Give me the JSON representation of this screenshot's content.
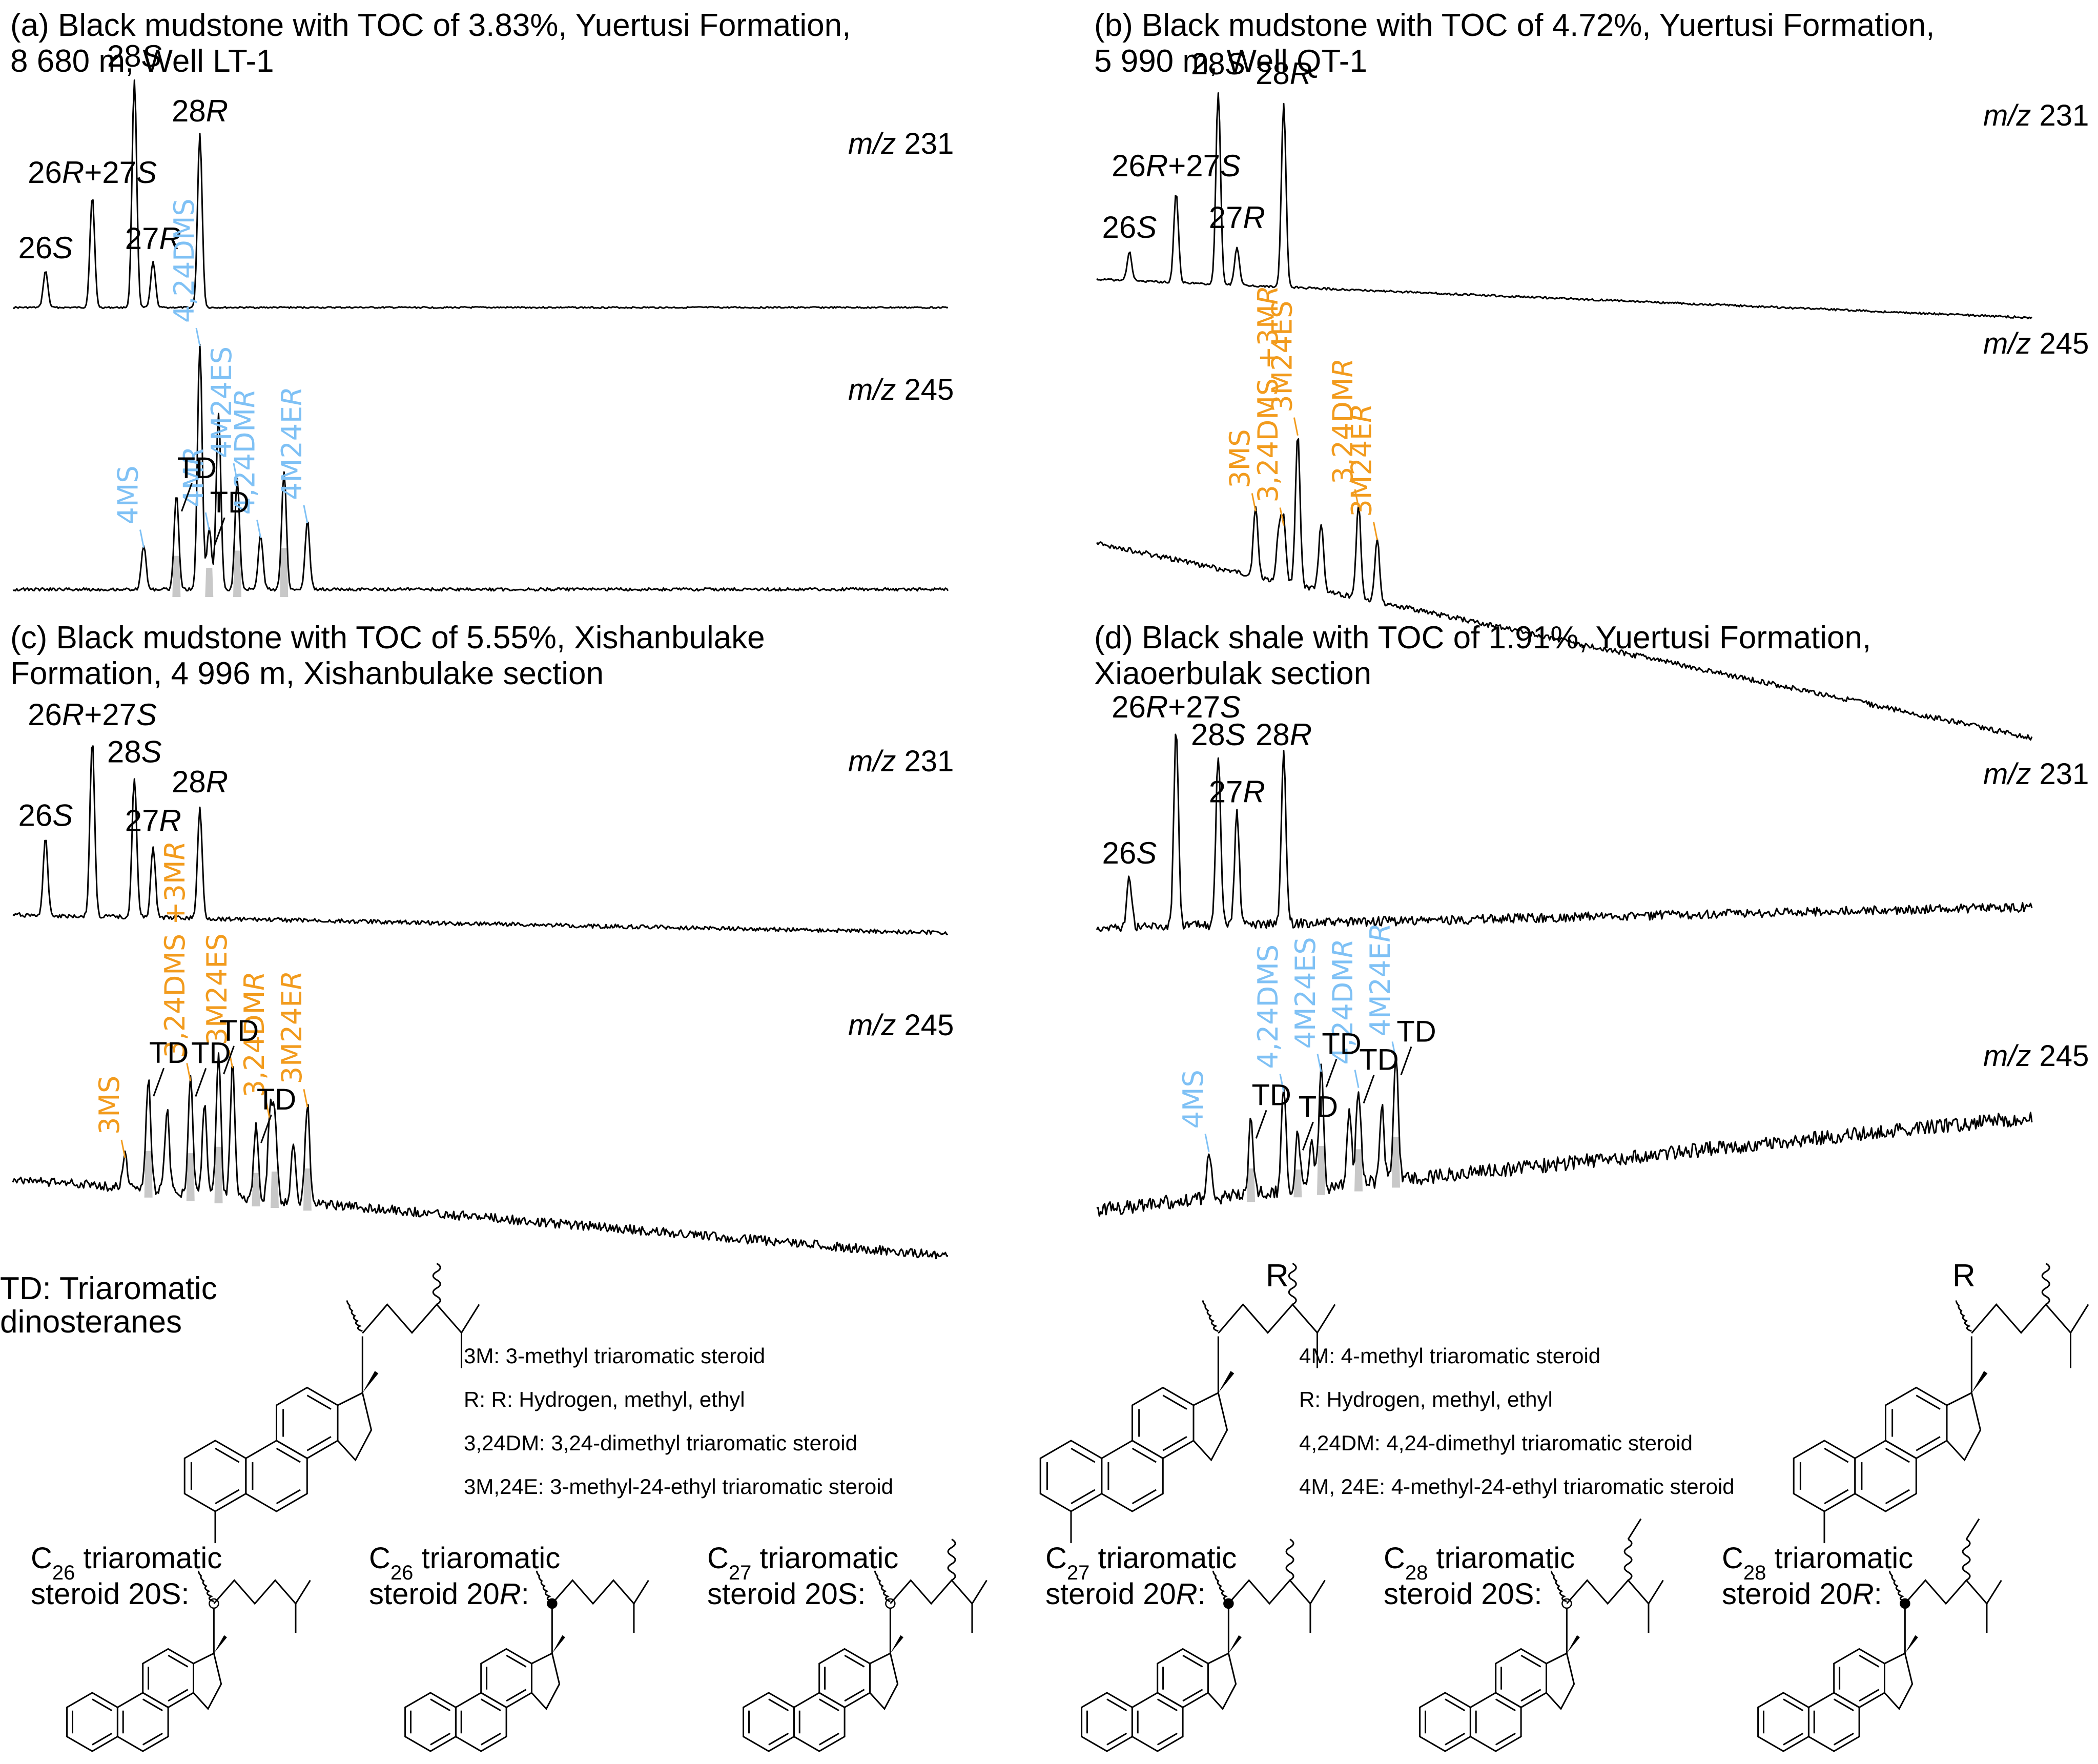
{
  "figure": {
    "colors": {
      "line": "#000000",
      "blue_label": "#7fc1f5",
      "orange_label": "#f29b1d",
      "shading": "#c8c8c8"
    },
    "panels": [
      {
        "id": "a",
        "title_line1": "(a) Black mudstone with TOC of 3.83%, Yuertusi Formation,",
        "title_line2": "8 680 m, Well LT-1",
        "m231": {
          "label_m": "m/z",
          "label_n": "231",
          "peaks": [
            {
              "name": "26S",
              "num": "26",
              "iso": "S",
              "rt": 0.035,
              "h": 0.16
            },
            {
              "name": "26R+27S",
              "num": "26",
              "iso": "R+27S",
              "rt": 0.085,
              "h": 0.49
            },
            {
              "name": "28S",
              "num": "28",
              "iso": "S",
              "rt": 0.13,
              "h": 1.0
            },
            {
              "name": "27R",
              "num": "27",
              "iso": "R",
              "rt": 0.15,
              "h": 0.2
            },
            {
              "name": "28R",
              "num": "28",
              "iso": "R",
              "rt": 0.2,
              "h": 0.76
            }
          ]
        },
        "m245": {
          "label_m": "m/z",
          "label_n": "245",
          "label_color": "blue",
          "labels": [
            "4MS",
            "4,24DMS",
            "4MR",
            "4M24ES",
            "4,24DMR",
            "4M24ER"
          ],
          "td_labels": [
            "TD",
            "TD"
          ],
          "peaks": [
            {
              "rt": 0.14,
              "h": 0.18
            },
            {
              "rt": 0.175,
              "h": 0.39
            },
            {
              "rt": 0.2,
              "h": 1.0
            },
            {
              "rt": 0.21,
              "h": 0.25
            },
            {
              "rt": 0.22,
              "h": 0.72
            },
            {
              "rt": 0.24,
              "h": 0.45
            },
            {
              "rt": 0.265,
              "h": 0.22
            },
            {
              "rt": 0.29,
              "h": 0.48
            },
            {
              "rt": 0.315,
              "h": 0.28
            }
          ]
        }
      },
      {
        "id": "b",
        "title_line1": "(b) Black mudstone with TOC of 4.72%, Yuertusi Formation,",
        "title_line2": "5 990 m, Well QT-1",
        "m231": {
          "label_m": "m/z",
          "label_n": "231",
          "peaks": [
            {
              "name": "26S",
              "num": "26",
              "iso": "S",
              "rt": 0.035,
              "h": 0.15
            },
            {
              "name": "26R+27S",
              "num": "26",
              "iso": "R+27S",
              "rt": 0.085,
              "h": 0.47
            },
            {
              "name": "28S",
              "num": "28",
              "iso": "S",
              "rt": 0.13,
              "h": 1.0
            },
            {
              "name": "27R",
              "num": "27",
              "iso": "R",
              "rt": 0.15,
              "h": 0.2
            },
            {
              "name": "28R",
              "num": "28",
              "iso": "R",
              "rt": 0.2,
              "h": 0.95
            }
          ]
        },
        "m245": {
          "label_m": "m/z",
          "label_n": "245",
          "label_color": "orange",
          "labels": [
            "3MS",
            "3,24DMS +3MR",
            "3M24ES",
            "3,24DMR",
            "3M24ER"
          ],
          "td_labels": [],
          "peaks": [
            {
              "rt": 0.17,
              "h": 0.4
            },
            {
              "rt": 0.195,
              "h": 0.3
            },
            {
              "rt": 0.2,
              "h": 0.35
            },
            {
              "rt": 0.215,
              "h": 0.9
            },
            {
              "rt": 0.24,
              "h": 0.4
            },
            {
              "rt": 0.28,
              "h": 0.55
            },
            {
              "rt": 0.3,
              "h": 0.38
            }
          ]
        }
      },
      {
        "id": "c",
        "title_line1": "(c) Black mudstone with TOC of 5.55%, Xishanbulake",
        "title_line2": "Formation, 4 996 m, Xishanbulake section",
        "m231": {
          "label_m": "m/z",
          "label_n": "231",
          "peaks": [
            {
              "name": "26S",
              "num": "26",
              "iso": "S",
              "rt": 0.035,
              "h": 0.43
            },
            {
              "name": "26R+27S",
              "num": "26",
              "iso": "R+27S",
              "rt": 0.085,
              "h": 1.0
            },
            {
              "name": "28S",
              "num": "28",
              "iso": "S",
              "rt": 0.13,
              "h": 0.79
            },
            {
              "name": "27R",
              "num": "27",
              "iso": "R",
              "rt": 0.15,
              "h": 0.4
            },
            {
              "name": "28R",
              "num": "28",
              "iso": "R",
              "rt": 0.2,
              "h": 0.62
            }
          ]
        },
        "m245": {
          "label_m": "m/z",
          "label_n": "245",
          "label_color": "orange",
          "labels": [
            "3MS",
            "3,24DMS +3MR",
            "3M24ES",
            "3,24DMR",
            "3M24ER"
          ],
          "td_labels": [
            "TD",
            "TD",
            "TD",
            "TD"
          ],
          "peaks": [
            {
              "rt": 0.12,
              "h": 0.2
            },
            {
              "rt": 0.145,
              "h": 0.68
            },
            {
              "rt": 0.165,
              "h": 0.5
            },
            {
              "rt": 0.19,
              "h": 0.7
            },
            {
              "rt": 0.205,
              "h": 0.55
            },
            {
              "rt": 0.22,
              "h": 0.85
            },
            {
              "rt": 0.235,
              "h": 0.8
            },
            {
              "rt": 0.26,
              "h": 0.45
            },
            {
              "rt": 0.275,
              "h": 0.5
            },
            {
              "rt": 0.28,
              "h": 0.5
            },
            {
              "rt": 0.3,
              "h": 0.33
            },
            {
              "rt": 0.315,
              "h": 0.6
            }
          ]
        }
      },
      {
        "id": "d",
        "title_line1": "(d) Black shale with TOC of 1.91%, Yuertusi Formation,",
        "title_line2": "Xiaoerbulak section",
        "m231": {
          "label_m": "m/z",
          "label_n": "231",
          "peaks": [
            {
              "name": "26S",
              "num": "26",
              "iso": "S",
              "rt": 0.035,
              "h": 0.26
            },
            {
              "name": "26R+27S",
              "num": "26",
              "iso": "R+27S",
              "rt": 0.085,
              "h": 1.0
            },
            {
              "name": "28S",
              "num": "28",
              "iso": "S",
              "rt": 0.13,
              "h": 0.86
            },
            {
              "name": "27R",
              "num": "27",
              "iso": "R",
              "rt": 0.15,
              "h": 0.57
            },
            {
              "name": "28R",
              "num": "28",
              "iso": "R",
              "rt": 0.2,
              "h": 0.86
            }
          ]
        },
        "m245": {
          "label_m": "m/z",
          "label_n": "245",
          "label_color": "blue",
          "labels": [
            "4MS",
            "4,24DMS",
            "4M24ES",
            "4,24DMR",
            "4M24ER"
          ],
          "td_labels": [
            "TD",
            "TD",
            "TD",
            "TD",
            "TD"
          ],
          "peaks": [
            {
              "rt": 0.12,
              "h": 0.3
            },
            {
              "rt": 0.165,
              "h": 0.45
            },
            {
              "rt": 0.2,
              "h": 0.62
            },
            {
              "rt": 0.215,
              "h": 0.35
            },
            {
              "rt": 0.23,
              "h": 0.3
            },
            {
              "rt": 0.24,
              "h": 0.72
            },
            {
              "rt": 0.27,
              "h": 0.45
            },
            {
              "rt": 0.28,
              "h": 0.6
            },
            {
              "rt": 0.305,
              "h": 0.45
            },
            {
              "rt": 0.32,
              "h": 0.75
            }
          ]
        }
      }
    ],
    "legend": {
      "td": [
        "TD: Triaromatic",
        "dinosteranes"
      ],
      "left_items": [
        "3M: 3-methyl triaromatic steroid",
        "R: R: Hydrogen, methyl, ethyl",
        "3,24DM: 3,24-dimethyl triaromatic steroid",
        "3M,24E: 3-methyl-24-ethyl triaromatic steroid"
      ],
      "right_items": [
        "4M: 4-methyl triaromatic steroid",
        "R: Hydrogen, methyl, ethyl",
        "4,24DM: 4,24-dimethyl triaromatic steroid",
        "4M, 24E: 4-methyl-24-ethyl triaromatic steroid"
      ],
      "r_label": "R"
    },
    "structures": [
      {
        "c": "26",
        "config": "S",
        "line1_rest": " triaromatic",
        "line2": "steroid 20",
        "suffix": ":"
      },
      {
        "c": "26",
        "config": "R",
        "line1_rest": " triaromatic",
        "line2": "steroid 20",
        "suffix": ":"
      },
      {
        "c": "27",
        "config": "S",
        "line1_rest": " triaromatic",
        "line2": "steroid 20",
        "suffix": ":"
      },
      {
        "c": "27",
        "config": "R",
        "line1_rest": " triaromatic",
        "line2": "steroid 20",
        "suffix": ":"
      },
      {
        "c": "28",
        "config": "S",
        "line1_rest": " triaromatic",
        "line2": "steroid 20",
        "suffix": ":"
      },
      {
        "c": "28",
        "config": "R",
        "line1_rest": " triaromatic",
        "line2": "steroid 20",
        "suffix": ":"
      }
    ]
  }
}
